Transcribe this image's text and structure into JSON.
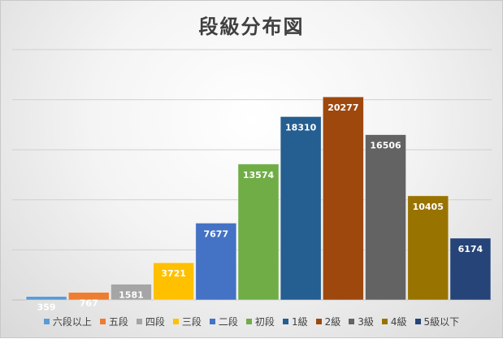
{
  "colors": {
    "六段以上": "#5b9bd5",
    "五段": "#ed7d31",
    "四段": "#a5a5a5",
    "三段": "#ffc000",
    "二段": "#4472c4",
    "初段": "#70ad47",
    "1級": "#255e91",
    "2級": "#9e480e",
    "3級": "#636363",
    "4級": "#997300",
    "5級以下": "#264478"
  },
  "chart_data": {
    "type": "bar",
    "title": "段級分布図",
    "xlabel": "",
    "ylabel": "",
    "ylim": [
      0,
      25000
    ],
    "grid": true,
    "legend": "bottom",
    "series": [
      {
        "name": "六段以上",
        "values": [
          359
        ]
      },
      {
        "name": "五段",
        "values": [
          767
        ]
      },
      {
        "name": "四段",
        "values": [
          1581
        ]
      },
      {
        "name": "三段",
        "values": [
          3721
        ]
      },
      {
        "name": "二段",
        "values": [
          7677
        ]
      },
      {
        "name": "初段",
        "values": [
          13574
        ]
      },
      {
        "name": "1級",
        "values": [
          18310
        ]
      },
      {
        "name": "2級",
        "values": [
          20277
        ]
      },
      {
        "name": "3級",
        "values": [
          16506
        ]
      },
      {
        "name": "4級",
        "values": [
          10405
        ]
      },
      {
        "name": "5級以下",
        "values": [
          6174
        ]
      }
    ]
  }
}
